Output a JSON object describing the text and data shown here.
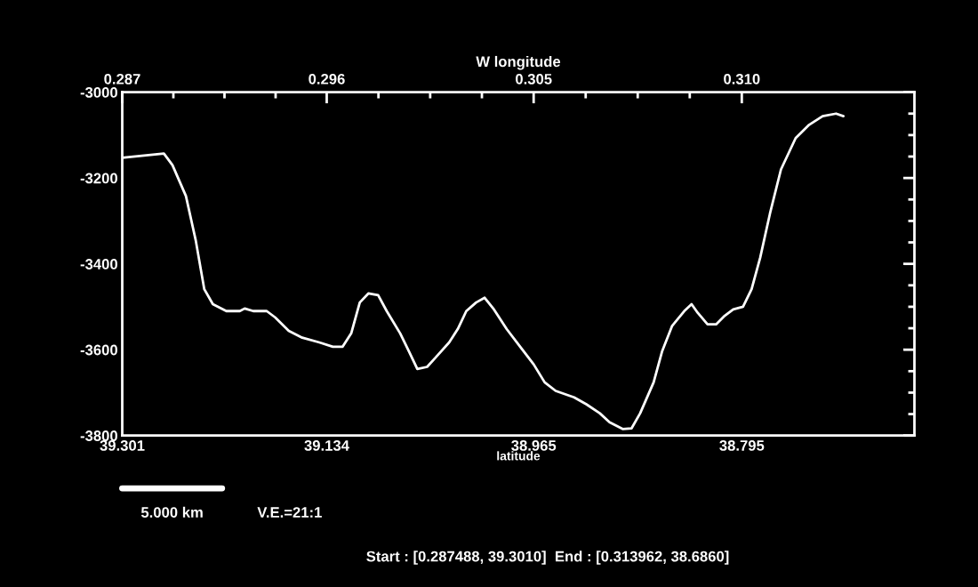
{
  "chart_data": {
    "type": "line",
    "xlabel": "latitude",
    "x2label": "W longitude",
    "x": [
      39.301,
      39.267,
      39.26,
      39.249,
      39.241,
      39.234,
      39.227,
      39.216,
      39.205,
      39.201,
      39.194,
      39.183,
      39.176,
      39.165,
      39.154,
      39.14,
      39.129,
      39.121,
      39.114,
      39.107,
      39.1,
      39.092,
      39.085,
      39.074,
      39.067,
      39.06,
      39.052,
      39.045,
      39.034,
      39.027,
      39.02,
      39.012,
      39.005,
      38.998,
      38.987,
      38.976,
      38.965,
      38.956,
      38.947,
      38.932,
      38.922,
      38.911,
      38.903,
      38.892,
      38.885,
      38.878,
      38.867,
      38.86,
      38.852,
      38.842,
      38.836,
      38.831,
      38.823,
      38.816,
      38.809,
      38.802,
      38.794,
      38.787,
      38.78,
      38.772,
      38.763,
      38.751,
      38.74,
      38.729,
      38.718,
      38.712
    ],
    "series": [
      {
        "color": "#ffffff",
        "values": [
          -3153,
          -3143,
          -3170,
          -3242,
          -3345,
          -3459,
          -3494,
          -3510,
          -3510,
          -3504,
          -3510,
          -3510,
          -3525,
          -3556,
          -3572,
          -3583,
          -3593,
          -3593,
          -3562,
          -3490,
          -3469,
          -3473,
          -3510,
          -3562,
          -3603,
          -3645,
          -3640,
          -3618,
          -3583,
          -3552,
          -3510,
          -3490,
          -3479,
          -3504,
          -3552,
          -3593,
          -3634,
          -3676,
          -3696,
          -3711,
          -3727,
          -3748,
          -3769,
          -3785,
          -3783,
          -3748,
          -3676,
          -3603,
          -3545,
          -3510,
          -3494,
          -3514,
          -3541,
          -3541,
          -3521,
          -3506,
          -3500,
          -3459,
          -3386,
          -3283,
          -3180,
          -3107,
          -3076,
          -3056,
          -3050,
          -3056
        ]
      }
    ],
    "xlim": [
      39.301,
      38.654
    ],
    "xticks": [
      39.301,
      39.134,
      38.965,
      38.795
    ],
    "ylim": [
      -3800,
      -3000
    ],
    "yticks": [
      -3800,
      -3600,
      -3400,
      -3200,
      -3000
    ],
    "grid": false,
    "marker": "none",
    "line_style": "solid",
    "annotations": [
      "0.287",
      "0.296",
      "0.305",
      "0.310",
      "5.000 km",
      "V.E.=21:1",
      "Start : [0.287488, 39.3010]  End : [0.313962, 38.6860]"
    ]
  }
}
